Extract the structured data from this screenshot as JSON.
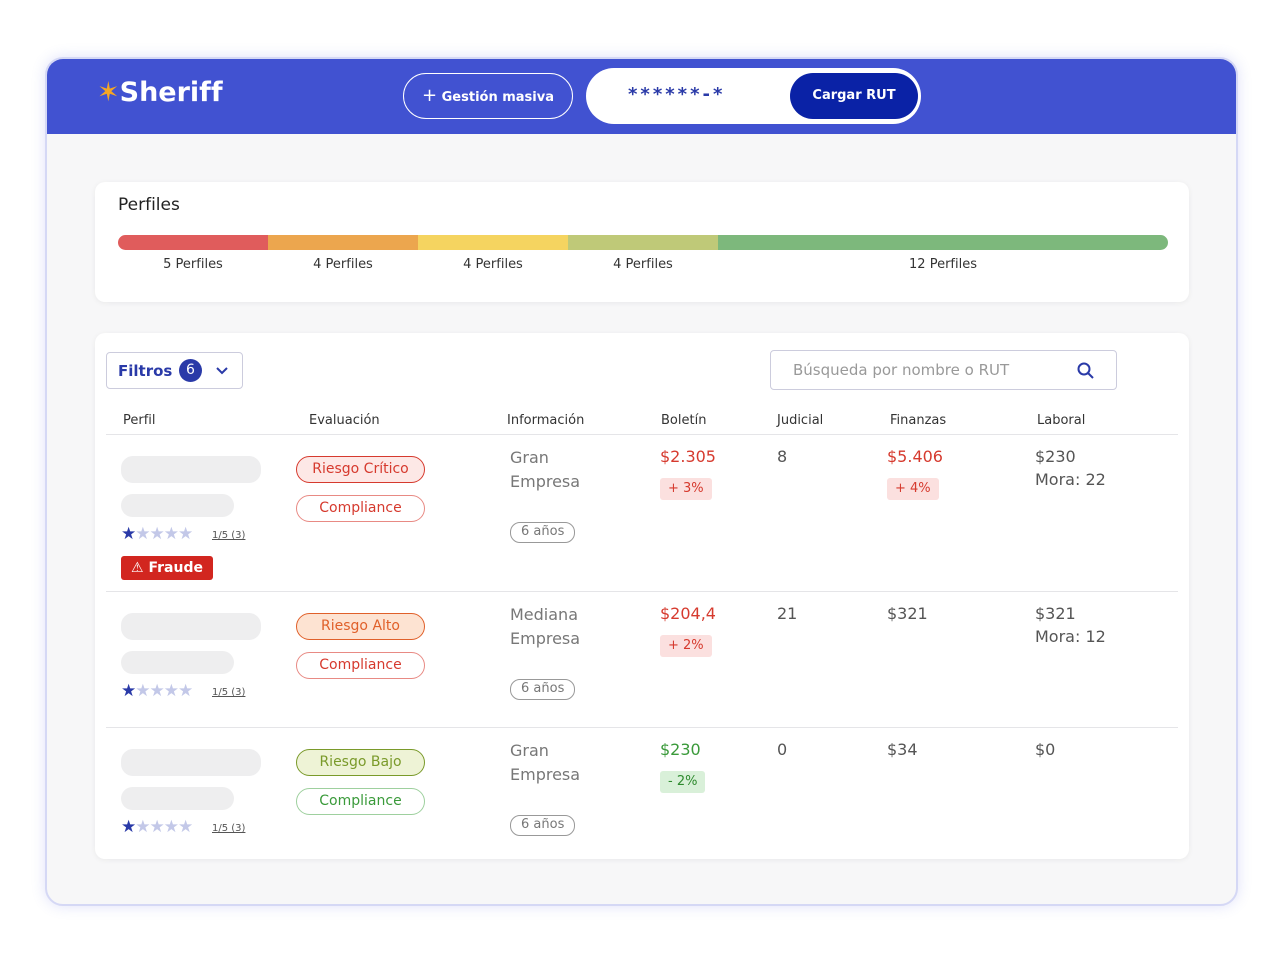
{
  "header": {
    "brand": "Sheriff",
    "bulk_button": "Gestión masiva",
    "rut_placeholder": "******-*",
    "load_button": "Cargar RUT"
  },
  "profiles": {
    "title": "Perfiles",
    "segments": [
      {
        "label": "5 Perfiles",
        "color": "#e05c5c"
      },
      {
        "label": "4 Perfiles",
        "color": "#eca64e"
      },
      {
        "label": "4 Perfiles",
        "color": "#f5d460"
      },
      {
        "label": "4 Perfiles",
        "color": "#bfc978"
      },
      {
        "label": "12 Perfiles",
        "color": "#7db87c"
      }
    ]
  },
  "filters": {
    "label": "Filtros",
    "count": "6"
  },
  "search": {
    "placeholder": "Búsqueda por nombre o RUT"
  },
  "table": {
    "columns": [
      "Perfil",
      "Evaluación",
      "Información",
      "Boletín",
      "Judicial",
      "Finanzas",
      "Laboral"
    ],
    "rows": [
      {
        "rating": "1/5 (3)",
        "fraud": "Fraude",
        "risk": "Riesgo Crítico",
        "compliance": "Compliance",
        "company": "Gran Empresa",
        "age": "6 años",
        "boletin": "$2.305",
        "boletin_change": "+ 3%",
        "judicial": "8",
        "finanzas": "$5.406",
        "finanzas_change": "+ 4%",
        "laboral": "$230",
        "mora": "Mora: 22"
      },
      {
        "rating": "1/5 (3)",
        "risk": "Riesgo Alto",
        "compliance": "Compliance",
        "company": "Mediana Empresa",
        "age": "6 años",
        "boletin": "$204,4",
        "boletin_change": "+ 2%",
        "judicial": "21",
        "finanzas": "$321",
        "laboral": "$321",
        "mora": "Mora: 12"
      },
      {
        "rating": "1/5 (3)",
        "risk": "Riesgo Bajo",
        "compliance": "Compliance",
        "company": "Gran Empresa",
        "age": "6 años",
        "boletin": "$230",
        "boletin_change": "- 2%",
        "judicial": "0",
        "finanzas": "$34",
        "laboral": "$0"
      }
    ]
  }
}
